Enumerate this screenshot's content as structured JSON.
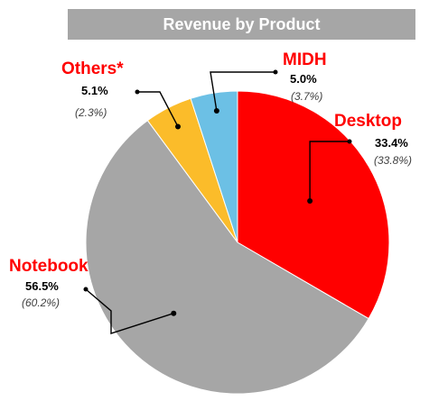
{
  "chart_data": {
    "type": "pie",
    "title": "Revenue by Product",
    "series": [
      {
        "categories": [
          "Desktop",
          "Notebook",
          "Others*",
          "MIDH"
        ],
        "values": [
          33.4,
          56.5,
          5.1,
          5.0
        ],
        "value_labels": [
          "33.4%",
          "56.5%",
          "5.1%",
          "5.0%"
        ],
        "previous_labels": [
          "(33.8%)",
          "(60.2%)",
          "(2.3%)",
          "(3.7%)"
        ],
        "colors": [
          "#ff0000",
          "#a6a6a6",
          "#fbbc2a",
          "#6cc0e5"
        ]
      }
    ],
    "start_angle_deg": 0,
    "direction": "clockwise",
    "legend": "none",
    "label_color": "#ff0000"
  }
}
